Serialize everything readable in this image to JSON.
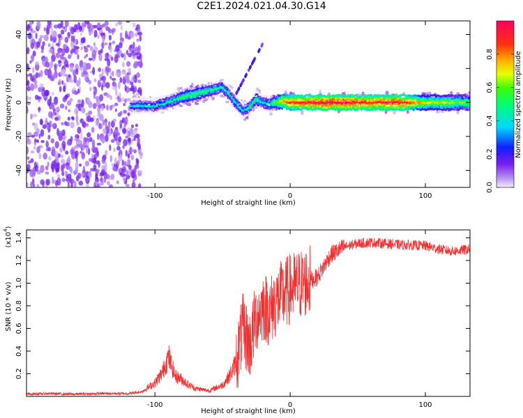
{
  "title": "C2E1.2024.021.04.30.G14",
  "colors": {
    "snr_line": "#f03030",
    "axis": "#000000"
  },
  "chart_data": [
    {
      "type": "heatmap",
      "xlabel": "Height of straight line (km)",
      "ylabel": "Frequency (Hz)",
      "xlim": [
        -195,
        133
      ],
      "ylim": [
        -50,
        48
      ],
      "x_ticks": [
        -100,
        0,
        100
      ],
      "x_tick_labels": [
        "-100",
        "0",
        "100"
      ],
      "y_ticks": [
        -40,
        -20,
        0,
        20,
        40
      ],
      "y_tick_labels": [
        "-40",
        "-20",
        "0",
        "20",
        "40"
      ],
      "grid": false,
      "colorbar": {
        "label": "Normalized spectral amplitude",
        "range": [
          0.0,
          1.0
        ],
        "ticks": [
          0.0,
          0.2,
          0.4,
          0.6,
          0.8
        ],
        "tick_labels": [
          "0.0",
          "0.2",
          "0.4",
          "0.6",
          "0.8"
        ]
      },
      "ridge": {
        "x": [
          -118,
          -110,
          -100,
          -90,
          -80,
          -70,
          -60,
          -50,
          -45,
          -40,
          -35,
          -30,
          -25,
          -20,
          -15,
          -10,
          -5,
          0,
          10,
          20,
          40,
          60,
          80,
          100,
          120,
          133
        ],
        "frequency": [
          -2,
          -2,
          -2,
          0,
          3,
          5,
          7,
          9,
          5,
          0,
          -5,
          -3,
          2,
          0,
          -1,
          0,
          1,
          0,
          0,
          0,
          0,
          0,
          0,
          0,
          0,
          0
        ],
        "amplitude": [
          0.35,
          0.4,
          0.4,
          0.45,
          0.5,
          0.55,
          0.5,
          0.45,
          0.45,
          0.45,
          0.4,
          0.45,
          0.5,
          0.4,
          0.45,
          0.6,
          0.8,
          0.85,
          0.9,
          0.95,
          0.95,
          0.9,
          0.95,
          0.7,
          0.65,
          0.6
        ]
      }
    },
    {
      "type": "line",
      "xlabel": "Height of straight line (km)",
      "ylabel": "SNR (10 * v/v)",
      "y_multiplier": "(x10",
      "y_multiplier_exp": "4",
      "y_multiplier_close": ")",
      "xlim": [
        -195,
        133
      ],
      "ylim": [
        0,
        1.47
      ],
      "x_ticks": [
        -100,
        0,
        100
      ],
      "x_tick_labels": [
        "-100",
        "0",
        "100"
      ],
      "y_ticks": [
        0.2,
        0.4,
        0.6,
        0.8,
        1.0,
        1.2,
        1.4
      ],
      "y_tick_labels": [
        "0.2",
        "0.4",
        "0.6",
        "0.8",
        "1.0",
        "1.2",
        "1.4"
      ],
      "grid": false,
      "series": [
        {
          "x": [
            -195,
            -180,
            -160,
            -140,
            -120,
            -110,
            -100,
            -95,
            -90,
            -85,
            -80,
            -75,
            -70,
            -60,
            -50,
            -45,
            -40,
            -35,
            -30,
            -25,
            -20,
            -15,
            -10,
            -5,
            0,
            10,
            20,
            25,
            30,
            40,
            50,
            60,
            80,
            100,
            110,
            120,
            133
          ],
          "values": [
            0.02,
            0.025,
            0.02,
            0.025,
            0.025,
            0.04,
            0.12,
            0.2,
            0.35,
            0.18,
            0.15,
            0.1,
            0.07,
            0.05,
            0.1,
            0.18,
            0.3,
            0.6,
            0.45,
            0.7,
            0.8,
            0.75,
            0.85,
            0.9,
            0.95,
            1.0,
            1.05,
            1.15,
            1.25,
            1.32,
            1.35,
            1.36,
            1.34,
            1.33,
            1.3,
            1.28,
            1.3
          ]
        }
      ]
    }
  ]
}
